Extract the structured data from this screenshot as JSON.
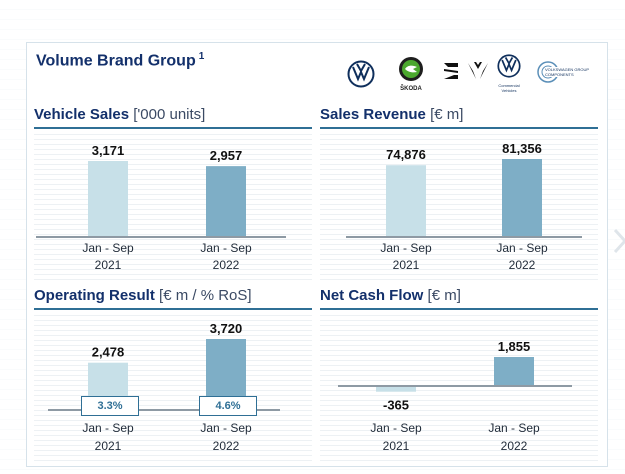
{
  "page": {
    "title": "Volume Brand Group",
    "footnote_mark": "1",
    "logos": [
      {
        "icon": "vw-logo-icon",
        "caption": ""
      },
      {
        "icon": "skoda-logo-icon",
        "caption": "ŠKODA"
      },
      {
        "icon": "seat-logo-icon",
        "caption": ""
      },
      {
        "icon": "cupra-logo-icon",
        "caption": ""
      },
      {
        "icon": "vw-commercial-vehicles-logo-icon",
        "caption": "Commercial Vehicles"
      },
      {
        "icon": "vw-group-components-logo-icon",
        "caption": "VOLKSWAGEN GROUP COMPONENTS"
      }
    ]
  },
  "colors": {
    "bar_prior": "#c7e0e8",
    "bar_current": "#7eaec6",
    "accent": "#2f6f95",
    "title": "#13306b"
  },
  "chart_data": [
    {
      "type": "bar",
      "title": "Vehicle Sales",
      "unit": "['000 units]",
      "categories": [
        "Jan - Sep 2021",
        "Jan - Sep 2022"
      ],
      "category_lines": [
        [
          "Jan - Sep",
          "2021"
        ],
        [
          "Jan - Sep",
          "2022"
        ]
      ],
      "values": [
        3171,
        2957
      ],
      "value_labels": [
        "3,171",
        "2,957"
      ]
    },
    {
      "type": "bar",
      "title": "Sales Revenue",
      "unit": "[€ m]",
      "categories": [
        "Jan - Sep 2021",
        "Jan - Sep 2022"
      ],
      "category_lines": [
        [
          "Jan - Sep",
          "2021"
        ],
        [
          "Jan - Sep",
          "2022"
        ]
      ],
      "values": [
        74876,
        81356
      ],
      "value_labels": [
        "74,876",
        "81,356"
      ]
    },
    {
      "type": "bar",
      "title": "Operating Result",
      "unit": "[€ m / % RoS]",
      "categories": [
        "Jan - Sep 2021",
        "Jan - Sep 2022"
      ],
      "category_lines": [
        [
          "Jan - Sep",
          "2021"
        ],
        [
          "Jan - Sep",
          "2022"
        ]
      ],
      "values": [
        2478,
        3720
      ],
      "value_labels": [
        "2,478",
        "3,720"
      ],
      "ros_labels": [
        "3.3%",
        "4.6%"
      ]
    },
    {
      "type": "bar",
      "title": "Net Cash Flow",
      "unit": "[€ m]",
      "categories": [
        "Jan - Sep 2021",
        "Jan - Sep 2022"
      ],
      "category_lines": [
        [
          "Jan - Sep",
          "2021"
        ],
        [
          "Jan - Sep",
          "2022"
        ]
      ],
      "values": [
        -365,
        1855
      ],
      "value_labels": [
        "-365",
        "1,855"
      ]
    }
  ]
}
